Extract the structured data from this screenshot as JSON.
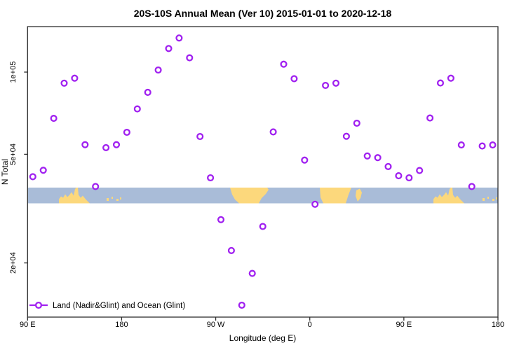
{
  "title": "20S-10S Annual Mean (Ver 10)   2015-01-01 to 2020-12-18",
  "colors": {
    "marker": "#A020F0",
    "ocean": "#A9BCD8",
    "land": "#FCD87C",
    "axis": "#2e2e2e",
    "background": "#ffffff"
  },
  "legend": {
    "label": "Land (Nadir&Glint) and Ocean (Glint)",
    "marker": "open-circle-on-line"
  },
  "chart_data": {
    "type": "scatter",
    "title": "20S-10S Annual Mean (Ver 10)   2015-01-01 to 2020-12-18",
    "xlabel": "Longitude (deg E)",
    "ylabel": "N Total",
    "y_scale": "log10",
    "x_axis_note": "longitude increases eastward from 90E, wrapping through 180, 90W, 0, 90E to 180 (450 deg span)",
    "x_ticks": [
      {
        "axis_deg": 90,
        "label": "90 E"
      },
      {
        "axis_deg": 180,
        "label": "180"
      },
      {
        "axis_deg": 270,
        "label": "90 W"
      },
      {
        "axis_deg": 360,
        "label": "0"
      },
      {
        "axis_deg": 450,
        "label": "90 E"
      },
      {
        "axis_deg": 540,
        "label": "180"
      }
    ],
    "y_ticks": [
      {
        "value": 100000,
        "label": "1e+05"
      },
      {
        "value": 50000,
        "label": "5e+04"
      },
      {
        "value": 20000,
        "label": "2e+04"
      }
    ],
    "xlim_axis_deg": [
      90,
      540
    ],
    "ylim_approx": [
      12700,
      147000
    ],
    "grid": false,
    "legend_position": "bottom-left inside plot",
    "series": [
      {
        "name": "Land (Nadir&Glint) and Ocean (Glint)",
        "marker": "open-circle",
        "color": "#A020F0",
        "points_axisdeg_value": [
          [
            95,
            41400
          ],
          [
            105,
            43700
          ],
          [
            115,
            67700
          ],
          [
            125,
            91100
          ],
          [
            135,
            95000
          ],
          [
            145,
            54200
          ],
          [
            155,
            38100
          ],
          [
            165,
            52900
          ],
          [
            175,
            54200
          ],
          [
            185,
            60200
          ],
          [
            195,
            73300
          ],
          [
            205,
            84300
          ],
          [
            215,
            101800
          ],
          [
            225,
            122000
          ],
          [
            235,
            133300
          ],
          [
            245,
            112800
          ],
          [
            255,
            58100
          ],
          [
            265,
            41000
          ],
          [
            275,
            28800
          ],
          [
            285,
            22200
          ],
          [
            295,
            14000
          ],
          [
            305,
            18300
          ],
          [
            315,
            27200
          ],
          [
            325,
            60400
          ],
          [
            335,
            106900
          ],
          [
            345,
            94600
          ],
          [
            355,
            47600
          ],
          [
            365,
            32800
          ],
          [
            375,
            89400
          ],
          [
            385,
            91100
          ],
          [
            395,
            58200
          ],
          [
            405,
            65000
          ],
          [
            415,
            49300
          ],
          [
            425,
            48600
          ],
          [
            435,
            45100
          ],
          [
            445,
            41700
          ],
          [
            455,
            41000
          ],
          [
            465,
            43600
          ],
          [
            475,
            67900
          ],
          [
            485,
            91200
          ],
          [
            495,
            95000
          ],
          [
            505,
            54100
          ],
          [
            515,
            38100
          ],
          [
            525,
            53600
          ],
          [
            535,
            54100
          ]
        ]
      }
    ],
    "map_strip": {
      "note": "horizontal world-map band (20S-10S latitude strip) drawn across the plot between N ≈ 33000 and N ≈ 38000",
      "ocean_color": "#A9BCD8",
      "land_color": "#FCD87C"
    }
  }
}
